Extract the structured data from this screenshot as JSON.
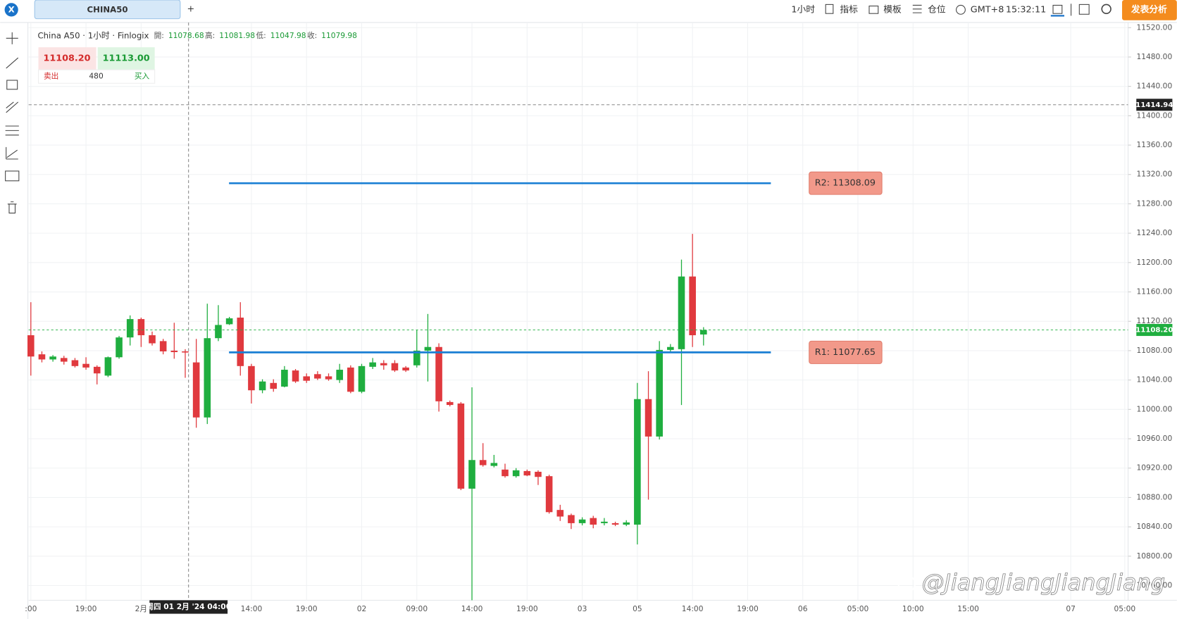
{
  "header": {
    "tab": "CHINA50",
    "add": "+",
    "interval": "1小时",
    "indicators": "指标",
    "templates": "模板",
    "positions": "仓位",
    "timezone": "GMT+8",
    "clock": "15:32:11",
    "publish": "发表分析"
  },
  "quote": {
    "bid": "11108.20",
    "ask": "11113.00",
    "sell": "卖出",
    "volume": "480",
    "buy": "买入"
  },
  "chart_data": {
    "type": "candlestick",
    "title": "China A50 · 1小时 · Finlogix",
    "ohlc_labels": [
      "開:",
      "高:",
      "低:",
      "收:"
    ],
    "ohlc_values": [
      11078.68,
      11081.98,
      11047.98,
      11079.98
    ],
    "up_color": "#1fae3f",
    "down_color": "#e0393e",
    "x": [
      0,
      1,
      2,
      3,
      4,
      5,
      6,
      7,
      8,
      9,
      10,
      11,
      12,
      13,
      14,
      15,
      16,
      17,
      18,
      19,
      20,
      21,
      22,
      23,
      24,
      25,
      26,
      27,
      28,
      29,
      30,
      31,
      32,
      33,
      34,
      35,
      36,
      37,
      38,
      39,
      40,
      41,
      42,
      43,
      44,
      45,
      46,
      47,
      48,
      49,
      50,
      51,
      52,
      53,
      54,
      55,
      56,
      57,
      58,
      59,
      60,
      61
    ],
    "open": [
      11101,
      11075,
      11068,
      11070,
      11067,
      11062,
      11058,
      11046,
      11071,
      11098,
      11123,
      11101,
      11093,
      11080,
      11079,
      11064,
      10989,
      11097,
      11116,
      11125,
      11059,
      11026,
      11036,
      11031,
      11053,
      11045,
      11048,
      11045,
      11040,
      11057,
      11024,
      11058,
      11063,
      11063,
      11057,
      11060,
      11080,
      11085,
      11010,
      11008,
      10892,
      10931,
      10923,
      10918,
      10909,
      10916,
      10915,
      10909,
      10863,
      10856,
      10845,
      10852,
      10845,
      10845,
      10843,
      10843,
      11014,
      10963,
      11081,
      11082,
      11181,
      11102
    ],
    "high": [
      11146,
      11079,
      11074,
      11073,
      11070,
      11071,
      11060,
      11072,
      11100,
      11128,
      11125,
      11106,
      11096,
      11118,
      11082,
      11096,
      11144,
      11142,
      11126,
      11146,
      11062,
      11041,
      11041,
      11059,
      11055,
      11049,
      11052,
      11049,
      11062,
      11060,
      11062,
      11070,
      11067,
      11067,
      11059,
      11108,
      11130,
      11090,
      11012,
      11010,
      11030,
      10954,
      10938,
      10926,
      10920,
      10918,
      10917,
      10911,
      10870,
      10858,
      10853,
      10855,
      10852,
      10847,
      10849,
      11036,
      11052,
      11093,
      11089,
      11204,
      11239,
      11112
    ],
    "low": [
      11046,
      11064,
      11065,
      11061,
      11057,
      11054,
      11034,
      11044,
      11069,
      11087,
      11085,
      11087,
      11075,
      11069,
      11043,
      10975,
      10980,
      11093,
      11115,
      11046,
      11008,
      11022,
      11024,
      11030,
      11036,
      11036,
      11040,
      11039,
      11036,
      11022,
      11022,
      11055,
      11054,
      11051,
      11051,
      11057,
      11038,
      10997,
      11004,
      10890,
      10740,
      10922,
      10921,
      10907,
      10907,
      10909,
      10897,
      10858,
      10848,
      10837,
      10842,
      10838,
      10842,
      10841,
      10841,
      10816,
      10877,
      10959,
      11079,
      11006,
      11085,
      11087
    ],
    "close": [
      11072,
      11068,
      11072,
      11065,
      11059,
      11057,
      11049,
      11071,
      11098,
      11123,
      11101,
      11090,
      11079,
      11078,
      11078,
      10989,
      11097,
      11115,
      11124,
      11059,
      11026,
      11038,
      11028,
      11054,
      11038,
      11039,
      11042,
      11041,
      11054,
      11024,
      11059,
      11064,
      11060,
      11053,
      11053,
      11080,
      11085,
      11011,
      11006,
      10892,
      10931,
      10924,
      10927,
      10909,
      10917,
      10910,
      10908,
      10860,
      10854,
      10845,
      10850,
      10843,
      10847,
      10843,
      10846,
      11014,
      10963,
      11081,
      11085,
      11181,
      11101,
      11108
    ],
    "xlim": [
      -0.2,
      99.5
    ],
    "ylim": [
      10740,
      11527
    ],
    "yticks": [
      {
        "value": 10760,
        "label": "10760.00"
      },
      {
        "value": 10800,
        "label": "10800.00"
      },
      {
        "value": 10840,
        "label": "10840.00"
      },
      {
        "value": 10880,
        "label": "10880.00"
      },
      {
        "value": 10920,
        "label": "10920.00"
      },
      {
        "value": 10960,
        "label": "10960.00"
      },
      {
        "value": 11000,
        "label": "11000.00"
      },
      {
        "value": 11040,
        "label": "11040.00"
      },
      {
        "value": 11080,
        "label": "11080.00"
      },
      {
        "value": 11120,
        "label": "11120.00"
      },
      {
        "value": 11160,
        "label": "11160.00"
      },
      {
        "value": 11200,
        "label": "11200.00"
      },
      {
        "value": 11240,
        "label": "11240.00"
      },
      {
        "value": 11280,
        "label": "11280.00"
      },
      {
        "value": 11320,
        "label": "11320.00"
      },
      {
        "value": 11360,
        "label": "11360.00"
      },
      {
        "value": 11400,
        "label": "11400.00"
      },
      {
        "value": 11440,
        "label": "11440.00"
      },
      {
        "value": 11480,
        "label": "11480.00"
      },
      {
        "value": 11520,
        "label": "11520.00"
      }
    ],
    "xticks": [
      {
        "value": 0,
        "label": ":00"
      },
      {
        "value": 5,
        "label": "19:00"
      },
      {
        "value": 10,
        "label": "2月"
      },
      {
        "value": 20,
        "label": "14:00"
      },
      {
        "value": 25,
        "label": "19:00"
      },
      {
        "value": 30,
        "label": "02"
      },
      {
        "value": 35,
        "label": "09:00"
      },
      {
        "value": 40,
        "label": "14:00"
      },
      {
        "value": 45,
        "label": "19:00"
      },
      {
        "value": 50,
        "label": "03"
      },
      {
        "value": 55,
        "label": "05"
      },
      {
        "value": 60,
        "label": "14:00"
      },
      {
        "value": 65,
        "label": "19:00"
      },
      {
        "value": 70,
        "label": "06"
      },
      {
        "value": 75,
        "label": "05:00"
      },
      {
        "value": 80,
        "label": "10:00"
      },
      {
        "value": 85,
        "label": "15:00"
      },
      {
        "value": 94.3,
        "label": "07"
      },
      {
        "value": 99.2,
        "label": "05:00"
      }
    ],
    "grid": true,
    "levels": [
      {
        "label": "R2: 11308.09",
        "value": 11308.09,
        "color": "#1a7fd4"
      },
      {
        "label": "R1: 11077.65",
        "value": 11077.65,
        "color": "#1a7fd4"
      }
    ],
    "last_price": {
      "value": 11108.2,
      "label": "11108.20"
    },
    "crosshair_price": {
      "value": 11414.94,
      "label": "11414.94"
    },
    "crosshair_time": {
      "value": 14.3,
      "label": "周四 01 2月 '24 04:00"
    },
    "watermark": "@JiangJiangJiangJiang"
  }
}
